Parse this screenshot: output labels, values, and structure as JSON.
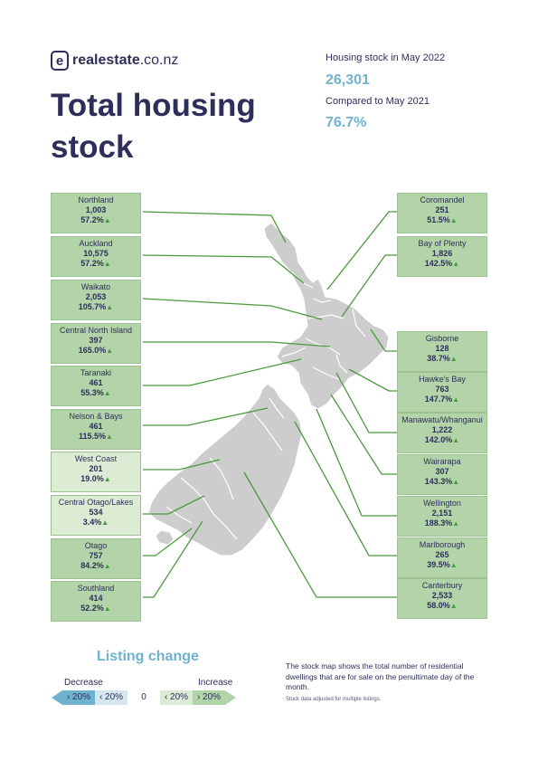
{
  "brand": {
    "mark": "e",
    "name": "realestate",
    "tld": ".co.nz"
  },
  "title_line1": "Total housing",
  "title_line2": "stock",
  "stats": {
    "stock_label": "Housing stock in May 2022",
    "stock_value": "26,301",
    "compare_label": "Compared to May 2021",
    "compare_value": "76.7%"
  },
  "regions": [
    {
      "name": "Northland",
      "stock": "1,003",
      "change": "57.2%",
      "direction": "increase"
    },
    {
      "name": "Auckland",
      "stock": "10,575",
      "change": "57.2%",
      "direction": "increase"
    },
    {
      "name": "Waikato",
      "stock": "2,053",
      "change": "105.7%",
      "direction": "increase"
    },
    {
      "name": "Central North Island",
      "stock": "397",
      "change": "165.0%",
      "direction": "increase"
    },
    {
      "name": "Taranaki",
      "stock": "461",
      "change": "55.3%",
      "direction": "increase"
    },
    {
      "name": "Nelson & Bays",
      "stock": "461",
      "change": "115.5%",
      "direction": "increase"
    },
    {
      "name": "West Coast",
      "stock": "201",
      "change": "19.0%",
      "direction": "increase"
    },
    {
      "name": "Central Otago/Lakes",
      "stock": "534",
      "change": "3.4%",
      "direction": "increase"
    },
    {
      "name": "Otago",
      "stock": "757",
      "change": "84.2%",
      "direction": "increase"
    },
    {
      "name": "Southland",
      "stock": "414",
      "change": "52.2%",
      "direction": "increase"
    },
    {
      "name": "Coromandel",
      "stock": "251",
      "change": "51.5%",
      "direction": "increase"
    },
    {
      "name": "Bay of Plenty",
      "stock": "1,826",
      "change": "142.5%",
      "direction": "increase"
    },
    {
      "name": "Gisborne",
      "stock": "128",
      "change": "38.7%",
      "direction": "increase"
    },
    {
      "name": "Hawke's Bay",
      "stock": "763",
      "change": "147.7%",
      "direction": "increase"
    },
    {
      "name": "Manawatu/Whanganui",
      "stock": "1,222",
      "change": "142.0%",
      "direction": "increase"
    },
    {
      "name": "Wairarapa",
      "stock": "307",
      "change": "143.3%",
      "direction": "increase"
    },
    {
      "name": "Wellington",
      "stock": "2,151",
      "change": "188.3%",
      "direction": "increase"
    },
    {
      "name": "Marlborough",
      "stock": "265",
      "change": "39.5%",
      "direction": "increase"
    },
    {
      "name": "Canterbury",
      "stock": "2,533",
      "change": "58.0%",
      "direction": "increase"
    }
  ],
  "legend": {
    "title": "Listing change",
    "decrease_label": "Decrease",
    "increase_label": "Increase",
    "segments": [
      "› 20%",
      "‹ 20%",
      "0",
      "‹ 20%",
      "› 20%"
    ],
    "colors": [
      "#6fb2cf",
      "#d4e6f0",
      "#ffffff",
      "#dcebd4",
      "#b3d3a8"
    ]
  },
  "note": "The stock map shows the total number of residential dwellings that are for sale on the penultimate day of the month.",
  "note_small": "Stock data adjusted for multiple listings.",
  "colors": {
    "navy": "#2d2f5a",
    "accent_blue": "#6fb2cf",
    "box_green": "#b3d3a8",
    "box_light_green": "#dcebd4",
    "line_green": "#4a9a3c",
    "map_grey": "#cdcdcd"
  }
}
